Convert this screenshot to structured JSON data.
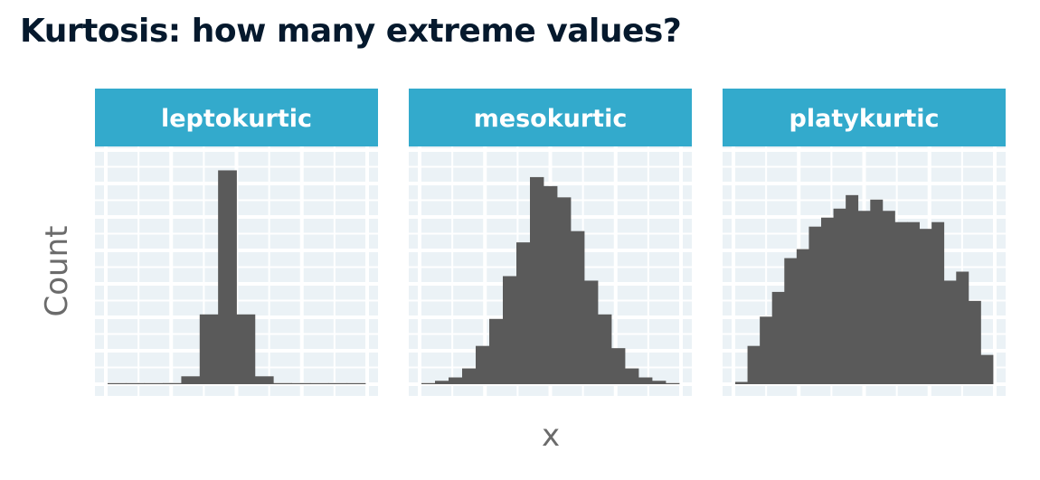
{
  "title": "Kurtosis: how many extreme values?",
  "colors": {
    "title": "#05192d",
    "strip": "#33aacc",
    "panel_bg": "#ebf2f6",
    "grid": "#ffffff",
    "bar": "#5a5a5a",
    "axis_title": "#6b6b6b"
  },
  "chart_data": {
    "type": "bar",
    "layout": "facet-grid",
    "xlabel": "x",
    "ylabel": "Count",
    "ylim": [
      0,
      100
    ],
    "grid": true,
    "legend": "none",
    "panels": [
      {
        "name": "leptokurtic",
        "values": [
          0,
          0,
          0,
          0.5,
          3.5,
          31,
          95,
          31,
          3.5,
          0.5,
          0,
          0,
          0,
          0
        ]
      },
      {
        "name": "mesokurtic",
        "values": [
          0.5,
          1.5,
          3,
          7,
          17,
          29,
          48,
          63,
          92,
          88,
          83,
          68,
          46,
          31,
          16,
          7,
          3,
          1.5,
          0.5
        ]
      },
      {
        "name": "platykurtic",
        "values": [
          1,
          17,
          30,
          41,
          56,
          60,
          70,
          74,
          78,
          84,
          77,
          82,
          77,
          72,
          72,
          69,
          72,
          46,
          50,
          37,
          13
        ]
      }
    ]
  }
}
